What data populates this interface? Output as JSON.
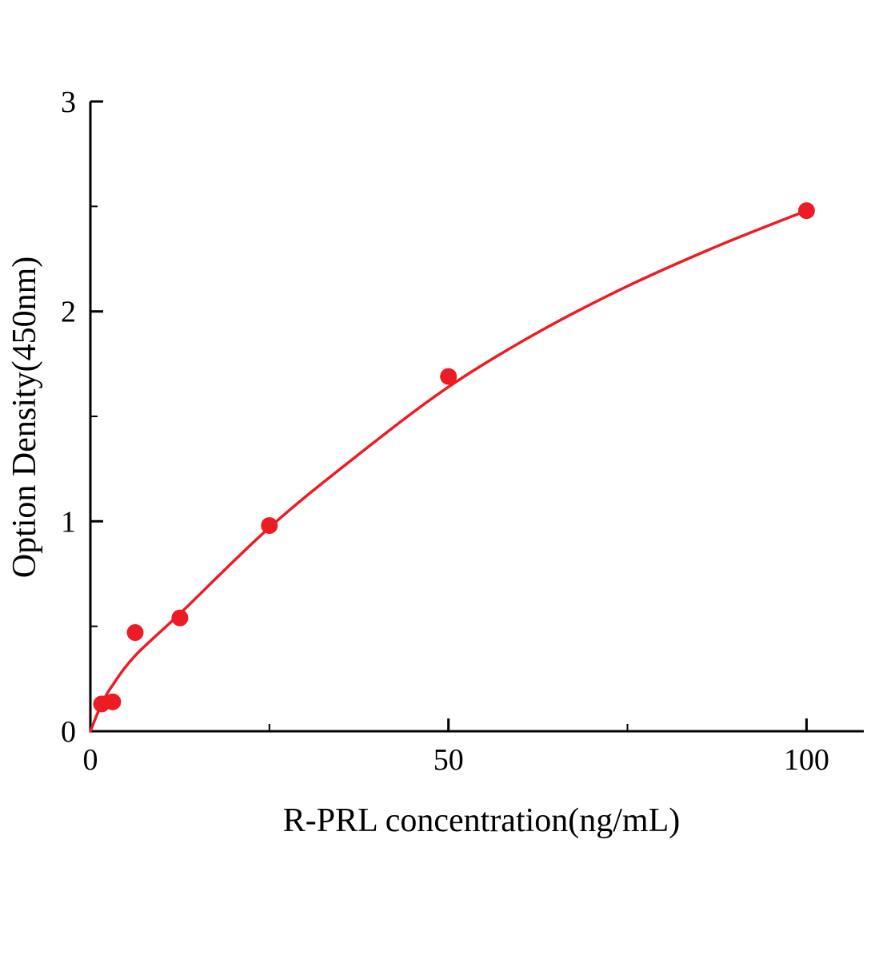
{
  "chart_data": {
    "type": "scatter",
    "title": "",
    "xlabel": "R-PRL concentration(ng/mL)",
    "ylabel": "Option Density(450nm)",
    "xlim": [
      0,
      108
    ],
    "ylim": [
      0,
      3
    ],
    "grid": false,
    "legend": false,
    "point_color": "#ed1c24",
    "line_color": "#ed1c24",
    "axis_color": "#000000",
    "x_ticks": [
      {
        "v": 0,
        "label": "0"
      },
      {
        "v": 50,
        "label": "50"
      },
      {
        "v": 100,
        "label": "100"
      }
    ],
    "x_minor_ticks": [
      25,
      75
    ],
    "y_ticks": [
      {
        "v": 0,
        "label": "0"
      },
      {
        "v": 1,
        "label": "1"
      },
      {
        "v": 2,
        "label": "2"
      },
      {
        "v": 3,
        "label": "3"
      }
    ],
    "y_minor_ticks": [
      0.5,
      1.5,
      2.5
    ],
    "series": [
      {
        "name": "standard-points",
        "type": "scatter",
        "x": [
          1.56,
          3.12,
          6.25,
          12.5,
          25,
          50,
          100
        ],
        "y": [
          0.13,
          0.14,
          0.47,
          0.54,
          0.98,
          1.69,
          2.48
        ]
      },
      {
        "name": "fit-curve",
        "type": "line",
        "x": [
          0,
          1.56,
          3.12,
          6.25,
          12.5,
          25,
          37.5,
          50,
          62.5,
          75,
          87.5,
          100
        ],
        "y": [
          0.0,
          0.13,
          0.22,
          0.36,
          0.56,
          0.97,
          1.32,
          1.64,
          1.9,
          2.12,
          2.31,
          2.48
        ]
      }
    ]
  }
}
